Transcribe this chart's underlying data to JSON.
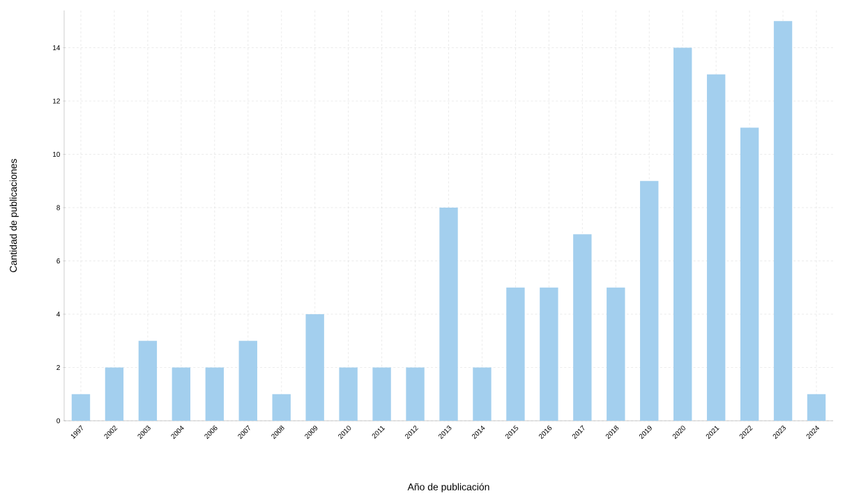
{
  "chart_data": {
    "type": "bar",
    "xlabel": "Año de publicación",
    "ylabel": "Cantidad de publicaciones",
    "categories": [
      "1997",
      "2002",
      "2003",
      "2004",
      "2006",
      "2007",
      "2008",
      "2009",
      "2010",
      "2011",
      "2012",
      "2013",
      "2014",
      "2015",
      "2016",
      "2017",
      "2018",
      "2019",
      "2020",
      "2021",
      "2022",
      "2023",
      "2024"
    ],
    "values": [
      1,
      2,
      3,
      2,
      2,
      3,
      1,
      4,
      2,
      2,
      2,
      8,
      2,
      5,
      5,
      7,
      5,
      9,
      14,
      13,
      11,
      15,
      1
    ],
    "color": "#a3cfee",
    "ylim": [
      0,
      15.4
    ],
    "yticks": [
      0,
      2,
      4,
      6,
      8,
      10,
      12,
      14
    ],
    "grid": true
  }
}
